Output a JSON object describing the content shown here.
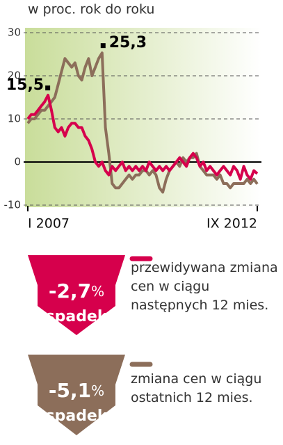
{
  "chart_data": {
    "type": "line",
    "subtitle": "w proc. rok do roku",
    "categories": [
      "I 2007",
      null,
      null,
      null,
      null,
      null,
      null,
      null,
      null,
      null,
      null,
      null,
      null,
      null,
      null,
      null,
      null,
      null,
      null,
      null,
      null,
      null,
      null,
      null,
      null,
      null,
      null,
      null,
      null,
      null,
      null,
      null,
      null,
      null,
      null,
      null,
      null,
      null,
      null,
      null,
      null,
      null,
      null,
      null,
      null,
      null,
      null,
      null,
      null,
      null,
      null,
      null,
      null,
      null,
      null,
      null,
      null,
      null,
      null,
      null,
      null,
      null,
      null,
      null,
      null,
      null,
      null,
      null,
      "IX 2012"
    ],
    "series": [
      {
        "name": "przewidywana zmiana cen w ciągu następnych 12 mies.",
        "color": "#d6004c",
        "values": [
          10,
          11,
          11,
          12,
          13,
          14,
          15.5,
          12,
          8,
          7,
          8,
          6,
          8,
          9,
          9,
          8,
          8,
          6,
          5,
          3,
          0,
          -1,
          0,
          -2,
          -3,
          -1,
          -2,
          -1,
          0,
          -2,
          -1,
          -2,
          -1,
          -2,
          -1,
          -2,
          0,
          -1,
          -2,
          -1,
          -2,
          -1,
          -2,
          -1,
          0,
          1,
          0,
          -1,
          1,
          2,
          1,
          -1,
          0,
          -2,
          -1,
          -2,
          -3,
          -2,
          -1,
          -2,
          -3,
          -1,
          -2,
          -4,
          -1,
          -3,
          -4,
          -2,
          -2.7
        ],
        "value_labels": [
          null,
          null,
          null,
          null,
          null,
          null,
          "15,5",
          null,
          null,
          null,
          null,
          null,
          null,
          null,
          null,
          null,
          null,
          null,
          null,
          null,
          null,
          null,
          null,
          null,
          null,
          null,
          null,
          null,
          null,
          null,
          null,
          null,
          null,
          null,
          null,
          null,
          null,
          null,
          null,
          null,
          null,
          null,
          null,
          null,
          null,
          null,
          null,
          null,
          null,
          null,
          null,
          null,
          null,
          null,
          null,
          null,
          null,
          null,
          null,
          null,
          null,
          null,
          null,
          null,
          null,
          null,
          null,
          null,
          null
        ]
      },
      {
        "name": "zmiana cen w ciągu ostatnich 12 mies.",
        "color": "#8c6e5a",
        "values": [
          9,
          10,
          10,
          11,
          12,
          12,
          13,
          14,
          15,
          18,
          21,
          24,
          23,
          22,
          23,
          20,
          19,
          22,
          24,
          20,
          22,
          24,
          25.3,
          8,
          2,
          -5,
          -6,
          -6,
          -5,
          -4,
          -3,
          -4,
          -3,
          -3,
          -2,
          -2,
          -3,
          -2,
          -3,
          -6,
          -7,
          -4,
          -2,
          -1,
          0,
          -1,
          1,
          0,
          1,
          1,
          2,
          -1,
          -2,
          -3,
          -3,
          -3,
          -4,
          -3,
          -5,
          -5,
          -6,
          -5,
          -5,
          -5,
          -5,
          -4,
          -5,
          -4,
          -5.1
        ],
        "value_labels": [
          null,
          null,
          null,
          null,
          null,
          null,
          null,
          null,
          null,
          null,
          null,
          null,
          null,
          null,
          null,
          null,
          null,
          null,
          null,
          null,
          null,
          null,
          "25,3",
          null,
          null,
          null,
          null,
          null,
          null,
          null,
          null,
          null,
          null,
          null,
          null,
          null,
          null,
          null,
          null,
          null,
          null,
          null,
          null,
          null,
          null,
          null,
          null,
          null,
          null,
          null,
          null,
          null,
          null,
          null,
          null,
          null,
          null,
          null,
          null,
          null,
          null,
          null,
          null,
          null,
          null,
          null,
          null,
          null,
          null
        ]
      }
    ],
    "ylim": [
      -10,
      30
    ],
    "yticks": [
      30,
      20,
      10,
      0,
      -10
    ],
    "grid": true,
    "callouts": [
      {
        "value": "-2,7",
        "unit": "%",
        "label": "spadek"
      },
      {
        "value": "-5,1",
        "unit": "%",
        "label": "spadek"
      }
    ]
  }
}
